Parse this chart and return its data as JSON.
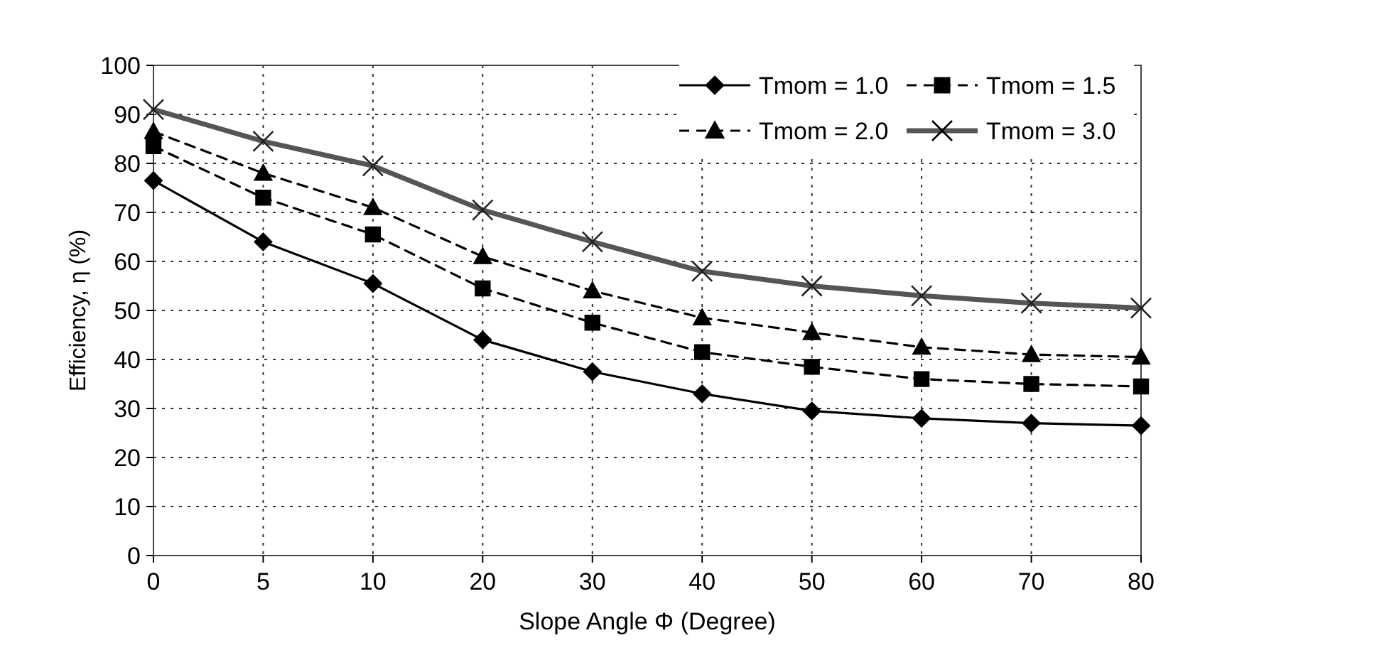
{
  "chart_data": {
    "type": "line",
    "xlabel": "Slope Angle Φ (Degree)",
    "ylabel": "Efficiency, η (%)",
    "categories": [
      "0",
      "5",
      "10",
      "20",
      "30",
      "40",
      "50",
      "60",
      "70",
      "80"
    ],
    "ylim": [
      0,
      100
    ],
    "yticks": [
      0,
      10,
      20,
      30,
      40,
      50,
      60,
      70,
      80,
      90,
      100
    ],
    "grid": true,
    "legend": "top right",
    "series": [
      {
        "name": "Tmom = 1.0",
        "color": "#000000",
        "marker": "diamond",
        "line_style": "solid",
        "values": [
          76.5,
          64,
          55.5,
          44,
          37.5,
          33,
          29.5,
          28,
          27,
          26.5
        ]
      },
      {
        "name": "Tmom = 1.5",
        "color": "#000000",
        "marker": "square",
        "line_style": "dashed",
        "values": [
          83.5,
          73,
          65.5,
          54.5,
          47.5,
          41.5,
          38.5,
          36,
          35,
          34.5
        ]
      },
      {
        "name": "Tmom = 2.0",
        "color": "#000000",
        "marker": "triangle",
        "line_style": "dashed",
        "values": [
          86.5,
          78,
          71,
          61,
          54,
          48.5,
          45.5,
          42.5,
          41,
          40.5
        ]
      },
      {
        "name": "Tmom = 3.0",
        "color": "#555555",
        "marker": "cross",
        "line_style": "solid",
        "values": [
          91,
          84.5,
          79.5,
          70.5,
          64,
          58,
          55,
          53,
          51.5,
          50.5
        ]
      }
    ]
  }
}
